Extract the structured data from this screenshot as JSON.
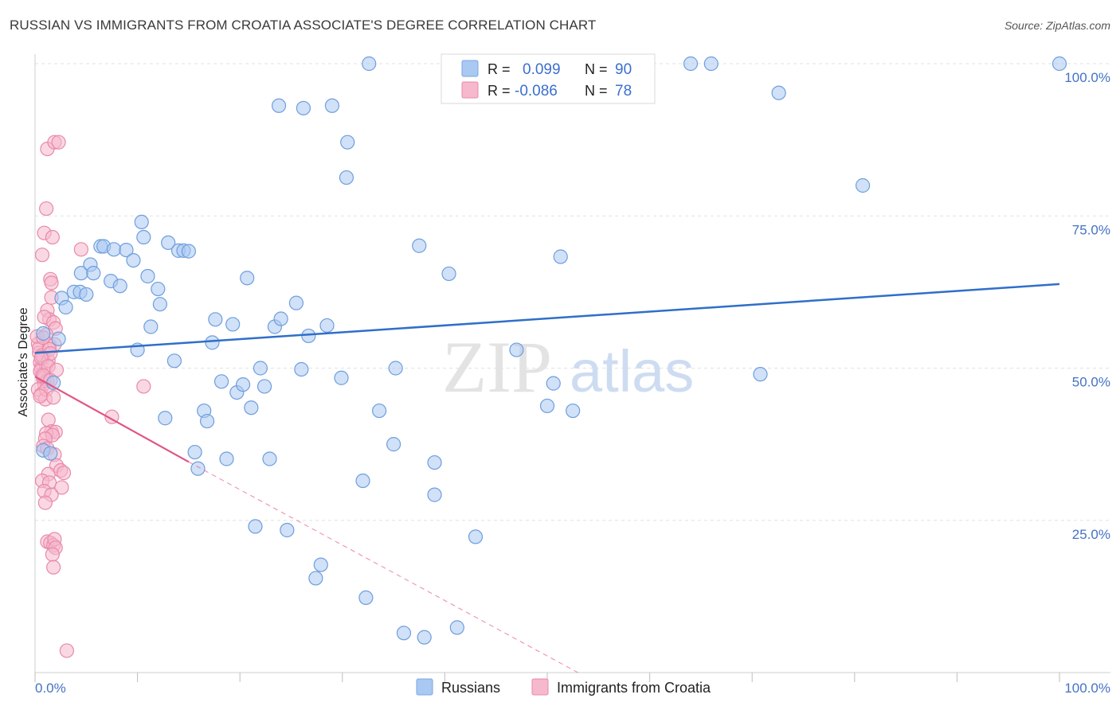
{
  "title": "RUSSIAN VS IMMIGRANTS FROM CROATIA ASSOCIATE'S DEGREE CORRELATION CHART",
  "source": "Source: ZipAtlas.com",
  "watermark": {
    "zip": "ZIP",
    "atlas": "atlas"
  },
  "chart_data": {
    "type": "scatter",
    "xlabel": "",
    "ylabel": "Associate's Degree",
    "xlim": [
      0,
      100
    ],
    "ylim": [
      0,
      100
    ],
    "x_tick_labels": {
      "left": "0.0%",
      "right": "100.0%"
    },
    "y_ticks": [
      {
        "value": 25,
        "label": "25.0%"
      },
      {
        "value": 50,
        "label": "50.0%"
      },
      {
        "value": 75,
        "label": "75.0%"
      },
      {
        "value": 100,
        "label": "100.0%"
      }
    ],
    "legend": [
      {
        "name": "Russians",
        "r_label": "R =",
        "r": "0.099",
        "n_label": "N =",
        "n": "90",
        "color": "#a9c8f2",
        "stroke": "#7aa6e0"
      },
      {
        "name": "Immigrants from Croatia",
        "r_label": "R =",
        "r": "-0.086",
        "n_label": "N =",
        "n": "78",
        "color": "#f6b8cc",
        "stroke": "#e88aa8"
      }
    ],
    "series": [
      {
        "name": "Russians",
        "color": "#a9c8f2",
        "stroke": "#6f9edd",
        "trend": {
          "x1": 0,
          "y1": 52.5,
          "x2": 100,
          "y2": 63.8,
          "color": "#2f6fc9"
        },
        "points": [
          [
            0.8,
            36.5
          ],
          [
            0.8,
            55.7
          ],
          [
            1.8,
            47.6
          ],
          [
            2.3,
            54.8
          ],
          [
            2.6,
            61.5
          ],
          [
            3.0,
            60.0
          ],
          [
            3.8,
            62.5
          ],
          [
            4.4,
            62.5
          ],
          [
            5.0,
            62.1
          ],
          [
            4.5,
            65.6
          ],
          [
            5.4,
            67.0
          ],
          [
            5.7,
            65.6
          ],
          [
            6.4,
            70.0
          ],
          [
            6.7,
            70.0
          ],
          [
            7.4,
            64.3
          ],
          [
            7.7,
            69.5
          ],
          [
            8.3,
            63.5
          ],
          [
            8.9,
            69.4
          ],
          [
            9.6,
            67.7
          ],
          [
            10.0,
            53.0
          ],
          [
            10.4,
            74.0
          ],
          [
            10.6,
            71.5
          ],
          [
            11.0,
            65.1
          ],
          [
            11.3,
            56.8
          ],
          [
            12.0,
            63.0
          ],
          [
            12.2,
            60.5
          ],
          [
            12.7,
            41.8
          ],
          [
            13.0,
            70.6
          ],
          [
            13.6,
            51.2
          ],
          [
            14.0,
            69.3
          ],
          [
            14.5,
            69.3
          ],
          [
            15.0,
            69.2
          ],
          [
            15.6,
            36.2
          ],
          [
            15.9,
            33.5
          ],
          [
            16.5,
            43.0
          ],
          [
            16.8,
            41.3
          ],
          [
            17.3,
            54.2
          ],
          [
            17.6,
            58.0
          ],
          [
            18.2,
            47.8
          ],
          [
            18.7,
            35.1
          ],
          [
            19.3,
            57.2
          ],
          [
            19.7,
            46.0
          ],
          [
            20.3,
            47.3
          ],
          [
            20.7,
            64.8
          ],
          [
            21.1,
            43.5
          ],
          [
            21.5,
            24.0
          ],
          [
            22.0,
            50.0
          ],
          [
            22.4,
            47.0
          ],
          [
            22.9,
            35.1
          ],
          [
            23.4,
            56.8
          ],
          [
            24.0,
            58.1
          ],
          [
            23.8,
            93.1
          ],
          [
            24.6,
            23.4
          ],
          [
            25.5,
            60.7
          ],
          [
            26.0,
            49.8
          ],
          [
            26.2,
            92.7
          ],
          [
            26.7,
            55.3
          ],
          [
            27.4,
            15.5
          ],
          [
            27.9,
            17.7
          ],
          [
            28.5,
            57.0
          ],
          [
            29.0,
            93.1
          ],
          [
            29.9,
            48.4
          ],
          [
            30.5,
            87.1
          ],
          [
            30.4,
            81.3
          ],
          [
            32.0,
            31.5
          ],
          [
            32.3,
            12.3
          ],
          [
            32.6,
            100.0
          ],
          [
            33.6,
            43.0
          ],
          [
            35.0,
            37.5
          ],
          [
            35.2,
            50.0
          ],
          [
            36.0,
            6.5
          ],
          [
            37.5,
            70.1
          ],
          [
            38.0,
            5.8
          ],
          [
            39.0,
            29.2
          ],
          [
            39.0,
            34.5
          ],
          [
            40.4,
            65.5
          ],
          [
            41.2,
            7.4
          ],
          [
            43.0,
            22.3
          ],
          [
            47.0,
            53.0
          ],
          [
            50.0,
            43.8
          ],
          [
            50.6,
            47.5
          ],
          [
            51.3,
            68.3
          ],
          [
            52.5,
            43.0
          ],
          [
            64.0,
            100.0
          ],
          [
            66.0,
            100.0
          ],
          [
            70.8,
            49.0
          ],
          [
            72.6,
            95.2
          ],
          [
            80.8,
            80.0
          ],
          [
            100.0,
            100.0
          ],
          [
            1.5,
            36.0
          ]
        ]
      },
      {
        "name": "Immigrants from Croatia",
        "color": "#f6b8cc",
        "stroke": "#e88aa8",
        "trend": {
          "x1": 0,
          "y1": 48.6,
          "x2": 15,
          "y2": 34.6,
          "x3": 53,
          "y3": 0,
          "color": "#e05585"
        },
        "points": [
          [
            0.3,
            54.0
          ],
          [
            0.4,
            52.5
          ],
          [
            0.5,
            50.9
          ],
          [
            0.6,
            50.0
          ],
          [
            0.7,
            49.0
          ],
          [
            0.8,
            48.2
          ],
          [
            0.9,
            47.4
          ],
          [
            0.3,
            46.5
          ],
          [
            0.6,
            45.7
          ],
          [
            1.0,
            44.9
          ],
          [
            0.4,
            53.3
          ],
          [
            0.8,
            51.7
          ],
          [
            1.1,
            50.5
          ],
          [
            0.5,
            49.5
          ],
          [
            0.9,
            48.6
          ],
          [
            1.2,
            47.9
          ],
          [
            0.7,
            52.1
          ],
          [
            1.3,
            51.2
          ],
          [
            0.2,
            55.2
          ],
          [
            1.4,
            53.8
          ],
          [
            0.7,
            68.6
          ],
          [
            1.2,
            86.0
          ],
          [
            1.9,
            87.1
          ],
          [
            2.3,
            87.1
          ],
          [
            1.1,
            76.2
          ],
          [
            0.9,
            72.2
          ],
          [
            1.7,
            71.5
          ],
          [
            4.5,
            69.5
          ],
          [
            1.5,
            64.6
          ],
          [
            1.6,
            64.0
          ],
          [
            1.6,
            61.6
          ],
          [
            1.2,
            59.5
          ],
          [
            1.4,
            58.0
          ],
          [
            0.9,
            58.4
          ],
          [
            1.8,
            57.5
          ],
          [
            2.0,
            56.5
          ],
          [
            1.1,
            55.5
          ],
          [
            0.8,
            55.0
          ],
          [
            1.9,
            53.9
          ],
          [
            1.4,
            53.1
          ],
          [
            1.5,
            52.4
          ],
          [
            0.6,
            51.7
          ],
          [
            1.3,
            50.3
          ],
          [
            2.1,
            49.7
          ],
          [
            0.8,
            48.8
          ],
          [
            1.5,
            48.0
          ],
          [
            10.6,
            47.0
          ],
          [
            1.1,
            46.5
          ],
          [
            0.5,
            45.4
          ],
          [
            1.8,
            45.2
          ],
          [
            7.5,
            42.0
          ],
          [
            1.3,
            41.5
          ],
          [
            1.6,
            39.6
          ],
          [
            2.0,
            39.5
          ],
          [
            1.1,
            39.3
          ],
          [
            1.7,
            39.0
          ],
          [
            1.0,
            38.4
          ],
          [
            0.8,
            37.2
          ],
          [
            1.2,
            36.8
          ],
          [
            1.9,
            35.8
          ],
          [
            2.1,
            34.0
          ],
          [
            1.3,
            32.6
          ],
          [
            2.5,
            33.2
          ],
          [
            2.8,
            32.8
          ],
          [
            0.7,
            31.5
          ],
          [
            1.4,
            31.2
          ],
          [
            2.6,
            30.4
          ],
          [
            0.9,
            29.8
          ],
          [
            1.6,
            29.2
          ],
          [
            1.0,
            27.9
          ],
          [
            1.2,
            21.5
          ],
          [
            1.5,
            21.3
          ],
          [
            1.8,
            20.9
          ],
          [
            1.9,
            21.9
          ],
          [
            2.0,
            20.5
          ],
          [
            1.7,
            19.4
          ],
          [
            1.8,
            17.3
          ],
          [
            3.1,
            3.6
          ]
        ]
      }
    ]
  }
}
